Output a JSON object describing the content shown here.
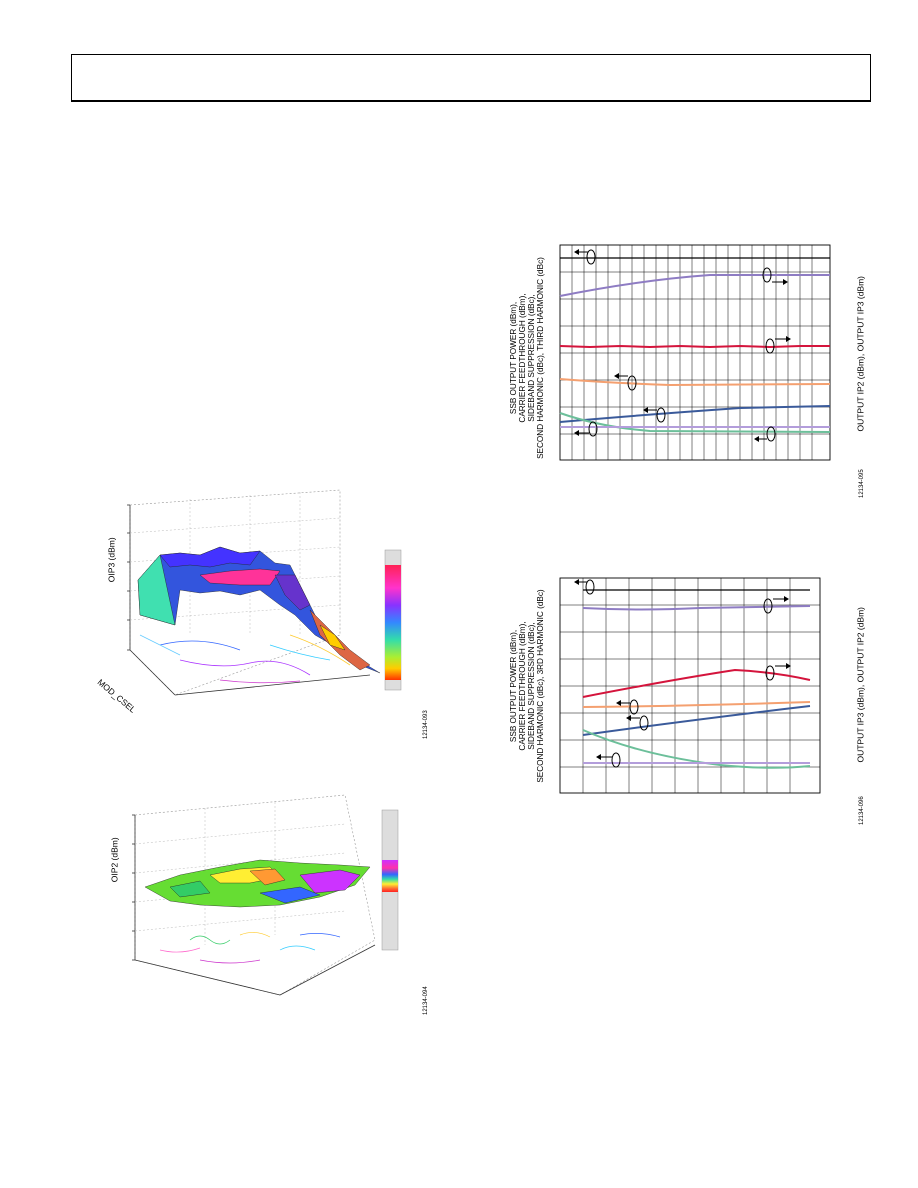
{
  "figures": {
    "surface_oip3": {
      "ylabel": "OIP3 (dBm)",
      "axis_label": "MOD_CSEL",
      "code": "12134-093"
    },
    "surface_oip2": {
      "ylabel": "OIP2 (dBm)",
      "code": "12134-094"
    },
    "line_top": {
      "left_label_lines": [
        "SSB OUTPUT POWER (dBm),",
        "CARRIER FEEDTHROUGH (dBm),",
        "SIDEBAND SUPPRESSION (dBc),",
        "SECOND HARMONIC (dBc), THIRD HARMONIC (dBc)"
      ],
      "right_label": "OUTPUT IP2 (dBm), OUTPUT IP3 (dBm)",
      "code": "12134-095"
    },
    "line_bottom": {
      "left_label_lines": [
        "SSB OUTPUT POWER (dBm),",
        "CARRIER FEEDTHROUGH (dBm),",
        "SIDEBAND SUPPRESSION (dBc),",
        "SECOND HARMONIC (dBc), 3RD HARMONIC (dBc)"
      ],
      "right_label": "OUTPUT IP3 (dBm), OUTPUT IP2 (dBm)",
      "code": "12134-096"
    }
  },
  "colors": {
    "purple": "#8e7cc3",
    "red": "#d4143c",
    "orange": "#f4a070",
    "blue": "#3a5a9a",
    "green": "#6cbf9a",
    "lavender": "#b39ddb"
  }
}
